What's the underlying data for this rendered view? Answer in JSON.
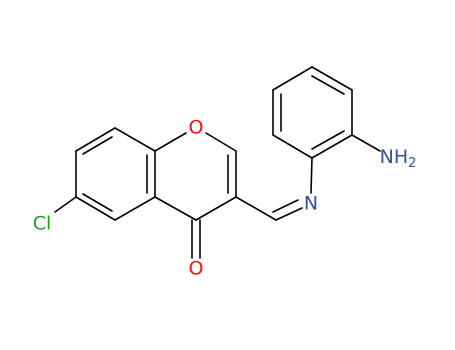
{
  "atoms": {
    "ring_oxygen": "O",
    "carbonyl_oxygen": "O",
    "chlorine": "Cl",
    "imine_nitrogen": "N",
    "amine": {
      "symbol": "NH",
      "subscript": "2"
    }
  }
}
